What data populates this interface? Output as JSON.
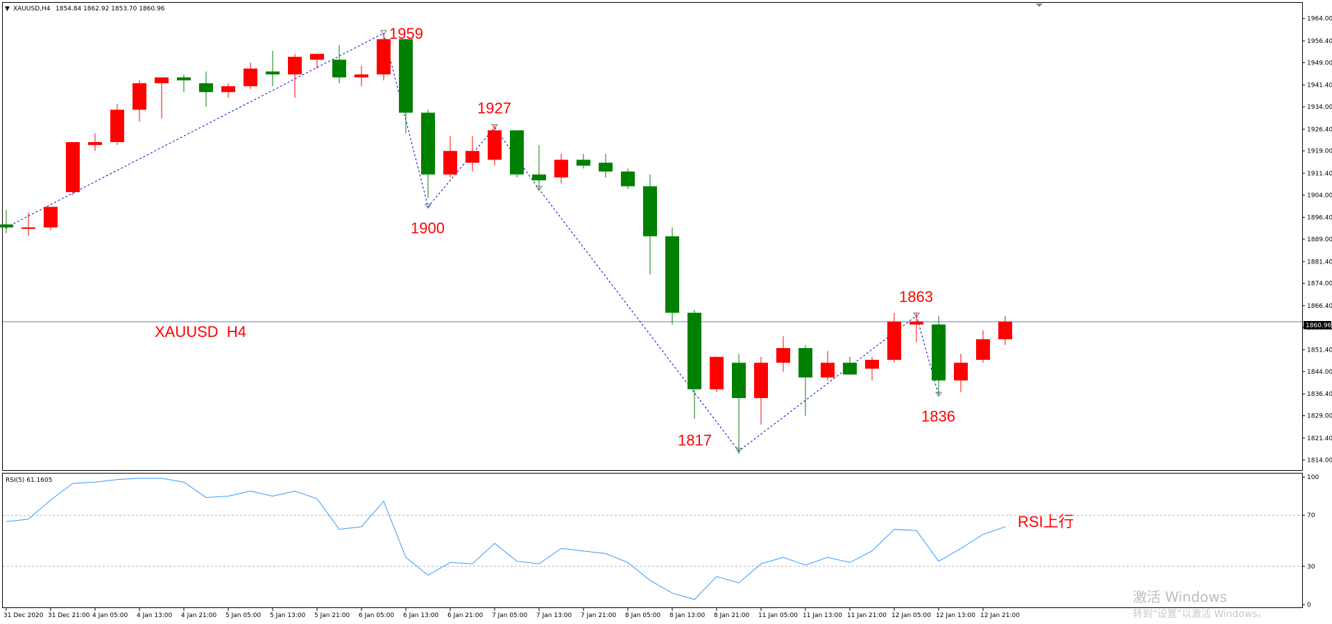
{
  "header": {
    "arrow": "▼",
    "symbol_tf": "XAUUSD,H4",
    "ohlc": "1854.84 1862.92 1853.70 1860.96"
  },
  "price_label": "1860.96",
  "rsi_header": "RSI(5) 61.1605",
  "watermark": {
    "line1": "激活 Windows",
    "line2": "转到“设置”以激活 Windows。"
  },
  "colors": {
    "bull": "#008000",
    "bear": "#ff0000",
    "rsi": "#3399ff",
    "zigzag": "#0000cc",
    "annotation": "#ff0000",
    "price_line": "#5b7db0"
  },
  "chart_data": [
    {
      "type": "candlestick",
      "title": "XAUUSD  H4",
      "ylim": [
        1811,
        1967
      ],
      "yticks": [
        "1964.00",
        "1956.40",
        "1949.00",
        "1941.40",
        "1934.00",
        "1926.40",
        "1919.00",
        "1911.40",
        "1904.00",
        "1896.40",
        "1889.00",
        "1881.40",
        "1874.00",
        "1866.40",
        "1859.00",
        "1851.40",
        "1844.00",
        "1836.40",
        "1829.00",
        "1821.40",
        "1814.00"
      ],
      "xticks": [
        "31 Dec 2020",
        "31 Dec 21:00",
        "4 Jan 05:00",
        "4 Jan 13:00",
        "4 Jan 21:00",
        "5 Jan 05:00",
        "5 Jan 13:00",
        "5 Jan 21:00",
        "6 Jan 05:00",
        "6 Jan 13:00",
        "6 Jan 21:00",
        "7 Jan 05:00",
        "7 Jan 13:00",
        "7 Jan 21:00",
        "8 Jan 05:00",
        "8 Jan 13:00",
        "8 Jan 21:00",
        "11 Jan 05:00",
        "11 Jan 13:00",
        "11 Jan 21:00",
        "12 Jan 05:00",
        "12 Jan 13:00",
        "12 Jan 21:00"
      ],
      "candles": [
        {
          "o": 1894,
          "h": 1899,
          "l": 1891,
          "c": 1893
        },
        {
          "o": 1893,
          "h": 1898,
          "l": 1890,
          "c": 1893
        },
        {
          "o": 1893,
          "h": 1900,
          "l": 1892,
          "c": 1900
        },
        {
          "o": 1905,
          "h": 1922,
          "l": 1904,
          "c": 1922
        },
        {
          "o": 1921,
          "h": 1925,
          "l": 1919,
          "c": 1922
        },
        {
          "o": 1922,
          "h": 1935,
          "l": 1921,
          "c": 1933
        },
        {
          "o": 1933,
          "h": 1943,
          "l": 1929,
          "c": 1942
        },
        {
          "o": 1942,
          "h": 1944,
          "l": 1930,
          "c": 1944
        },
        {
          "o": 1944,
          "h": 1945,
          "l": 1939,
          "c": 1943
        },
        {
          "o": 1942,
          "h": 1946,
          "l": 1934,
          "c": 1939
        },
        {
          "o": 1939,
          "h": 1942,
          "l": 1937,
          "c": 1941
        },
        {
          "o": 1941,
          "h": 1949,
          "l": 1940,
          "c": 1947
        },
        {
          "o": 1946,
          "h": 1953,
          "l": 1941,
          "c": 1945
        },
        {
          "o": 1945,
          "h": 1952,
          "l": 1937,
          "c": 1951
        },
        {
          "o": 1950,
          "h": 1952,
          "l": 1947,
          "c": 1952
        },
        {
          "o": 1950,
          "h": 1955,
          "l": 1942,
          "c": 1944
        },
        {
          "o": 1944,
          "h": 1948,
          "l": 1941,
          "c": 1945
        },
        {
          "o": 1945,
          "h": 1959,
          "l": 1943,
          "c": 1957
        },
        {
          "o": 1957,
          "h": 1957,
          "l": 1925,
          "c": 1932
        },
        {
          "o": 1932,
          "h": 1933,
          "l": 1903,
          "c": 1911
        },
        {
          "o": 1911,
          "h": 1924,
          "l": 1910,
          "c": 1919
        },
        {
          "o": 1915,
          "h": 1924,
          "l": 1912,
          "c": 1919
        },
        {
          "o": 1916,
          "h": 1928,
          "l": 1914,
          "c": 1926
        },
        {
          "o": 1926,
          "h": 1926,
          "l": 1910,
          "c": 1911
        },
        {
          "o": 1911,
          "h": 1921,
          "l": 1906,
          "c": 1909
        },
        {
          "o": 1910,
          "h": 1918,
          "l": 1908,
          "c": 1916
        },
        {
          "o": 1916,
          "h": 1918,
          "l": 1913,
          "c": 1914
        },
        {
          "o": 1915,
          "h": 1918,
          "l": 1910,
          "c": 1912
        },
        {
          "o": 1912,
          "h": 1913,
          "l": 1906,
          "c": 1907
        },
        {
          "o": 1907,
          "h": 1911,
          "l": 1877,
          "c": 1890
        },
        {
          "o": 1890,
          "h": 1893,
          "l": 1860,
          "c": 1864
        },
        {
          "o": 1864,
          "h": 1865,
          "l": 1828,
          "c": 1838
        },
        {
          "o": 1838,
          "h": 1849,
          "l": 1837,
          "c": 1849
        },
        {
          "o": 1847,
          "h": 1850,
          "l": 1816,
          "c": 1835
        },
        {
          "o": 1835,
          "h": 1849,
          "l": 1826,
          "c": 1847
        },
        {
          "o": 1847,
          "h": 1856,
          "l": 1844,
          "c": 1852
        },
        {
          "o": 1852,
          "h": 1853,
          "l": 1829,
          "c": 1842
        },
        {
          "o": 1842,
          "h": 1851,
          "l": 1841,
          "c": 1847
        },
        {
          "o": 1847,
          "h": 1849,
          "l": 1843,
          "c": 1843
        },
        {
          "o": 1845,
          "h": 1849,
          "l": 1841,
          "c": 1848
        },
        {
          "o": 1848,
          "h": 1864,
          "l": 1847,
          "c": 1861
        },
        {
          "o": 1860,
          "h": 1864,
          "l": 1854,
          "c": 1861
        },
        {
          "o": 1860,
          "h": 1863,
          "l": 1836,
          "c": 1841
        },
        {
          "o": 1841,
          "h": 1850,
          "l": 1837,
          "c": 1847
        },
        {
          "o": 1848,
          "h": 1858,
          "l": 1847,
          "c": 1855
        },
        {
          "o": 1855,
          "h": 1863,
          "l": 1853,
          "c": 1861
        }
      ],
      "zigzag": [
        {
          "i": 0,
          "v": 1893
        },
        {
          "i": 17,
          "v": 1959
        },
        {
          "i": 19,
          "v": 1900
        },
        {
          "i": 22,
          "v": 1927
        },
        {
          "i": 24,
          "v": 1906
        },
        {
          "i": 33,
          "v": 1817
        },
        {
          "i": 41,
          "v": 1863
        },
        {
          "i": 42,
          "v": 1836
        }
      ],
      "annotations": [
        {
          "text": "1959",
          "i": 17,
          "v": 1959,
          "pos": "right"
        },
        {
          "text": "1900",
          "i": 19,
          "v": 1900,
          "pos": "below"
        },
        {
          "text": "1927",
          "i": 22,
          "v": 1927,
          "pos": "above"
        },
        {
          "text": "1817",
          "i": 33,
          "v": 1817,
          "pos": "left"
        },
        {
          "text": "1863",
          "i": 41,
          "v": 1863,
          "pos": "above"
        },
        {
          "text": "1836",
          "i": 42,
          "v": 1836,
          "pos": "below"
        }
      ],
      "current_price": 1860.96
    },
    {
      "type": "line",
      "title": "RSI(5) 61.1605",
      "ylim": [
        0,
        100
      ],
      "yticks": [
        "100",
        "70",
        "30",
        "0"
      ],
      "levels": [
        70,
        30
      ],
      "series": [
        {
          "values": [
            65,
            67,
            82,
            95,
            96,
            98,
            99,
            99,
            96,
            84,
            85,
            89,
            85,
            89,
            83,
            59,
            61,
            81,
            37,
            23,
            33,
            32,
            48,
            34,
            32,
            44,
            42,
            40,
            33,
            19,
            9,
            4,
            22,
            17,
            32,
            37,
            31,
            37,
            33,
            42,
            59,
            58,
            34,
            44,
            55,
            61
          ]
        }
      ],
      "annotation": "RSI上行"
    }
  ]
}
